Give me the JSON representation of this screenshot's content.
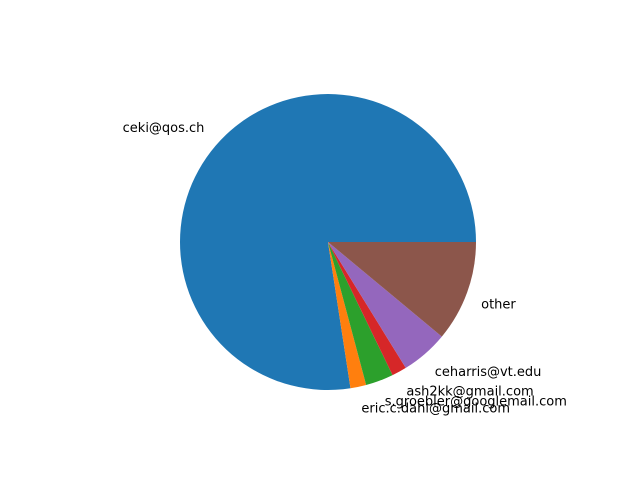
{
  "chart_data": {
    "type": "pie",
    "title": "",
    "start_angle_deg": 0,
    "direction": "counterclockwise",
    "slices": [
      {
        "label": "ceki@qos.ch",
        "value": 76.5,
        "color": "#1f77b4"
      },
      {
        "label": "eric.c.dahl@gmail.com",
        "value": 1.7,
        "color": "#ff7f0e"
      },
      {
        "label": "s.groebler@googlemail.com",
        "value": 3.0,
        "color": "#2ca02c"
      },
      {
        "label": "ash2kk@gmail.com",
        "value": 1.6,
        "color": "#d62728"
      },
      {
        "label": "ceharris@vt.edu",
        "value": 5.1,
        "color": "#9467bd"
      },
      {
        "label": "other",
        "value": 10.9,
        "color": "#8c564b"
      }
    ]
  }
}
